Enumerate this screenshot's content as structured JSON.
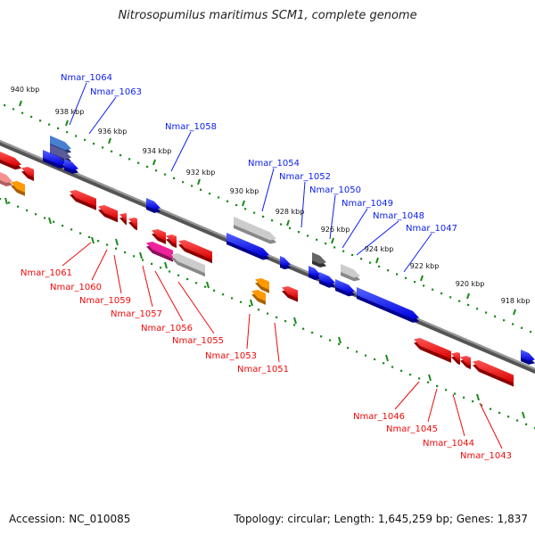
{
  "title": "Nitrosopumilus maritimus SCM1, complete genome",
  "accession_label": "Accession: NC_010085",
  "topology_label": "Topology: circular; Length: 1,645,259 bp; Genes: 1,837",
  "colors": {
    "forward": "#0a1ef0",
    "reverse": "#f00a0a",
    "backbone": "#666666",
    "ruler": "#1a8a1a",
    "grey": "#bdbdbd"
  },
  "kbp_labels": [
    "940 kbp",
    "938 kbp",
    "936 kbp",
    "934 kbp",
    "932 kbp",
    "930 kbp",
    "928 kbp",
    "926 kbp",
    "924 kbp",
    "922 kbp",
    "920 kbp",
    "918 kbp"
  ],
  "forward_genes": [
    "Nmar_1064",
    "Nmar_1063",
    "Nmar_1058",
    "Nmar_1054",
    "Nmar_1052",
    "Nmar_1050",
    "Nmar_1049",
    "Nmar_1048",
    "Nmar_1047"
  ],
  "reverse_genes": [
    "Nmar_1061",
    "Nmar_1060",
    "Nmar_1059",
    "Nmar_1057",
    "Nmar_1056",
    "Nmar_1055",
    "Nmar_1053",
    "Nmar_1051",
    "Nmar_1046",
    "Nmar_1045",
    "Nmar_1044",
    "Nmar_1043"
  ]
}
